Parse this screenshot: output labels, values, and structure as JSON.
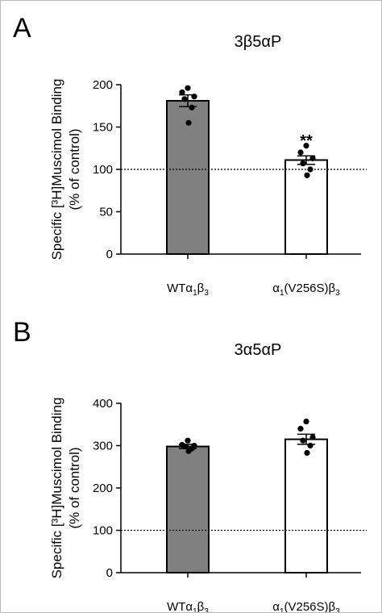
{
  "panels": [
    "A",
    "B"
  ],
  "chart_data": [
    {
      "type": "bar",
      "panel": "A",
      "title": "3β5αP",
      "ylabel": "Specific [³H]Muscimol Binding",
      "ylabel2": "(% of control)",
      "xlabel": "",
      "ylim": [
        0,
        200
      ],
      "yticks": [
        0,
        50,
        100,
        150,
        200
      ],
      "reference_line": 100,
      "categories": [
        {
          "base": "WTα",
          "sub1": "1",
          "mid": "β",
          "sub2": "3"
        },
        {
          "base": "α",
          "sub1": "1",
          "mid": "(V256S)β",
          "sub2": "3"
        }
      ],
      "values": [
        181,
        111
      ],
      "errors": [
        7,
        5
      ],
      "bar_colors": [
        "#808080",
        "#ffffff"
      ],
      "points": [
        [
          196,
          191,
          186,
          183,
          173,
          155
        ],
        [
          128,
          120,
          113,
          107,
          100,
          93
        ]
      ],
      "annotations": [
        "",
        "**"
      ]
    },
    {
      "type": "bar",
      "panel": "B",
      "title": "3α5αP",
      "ylabel": "Specific [³H]Muscimol Binding",
      "ylabel2": "(% of control)",
      "xlabel": "",
      "ylim": [
        0,
        400
      ],
      "yticks": [
        0,
        100,
        200,
        300,
        400
      ],
      "reference_line": 100,
      "categories": [
        {
          "base": "WTα",
          "sub1": "1",
          "mid": "β",
          "sub2": "3"
        },
        {
          "base": "α",
          "sub1": "1",
          "mid": "(V256S)β",
          "sub2": "3"
        }
      ],
      "values": [
        298,
        315
      ],
      "errors": [
        5,
        12
      ],
      "bar_colors": [
        "#808080",
        "#ffffff"
      ],
      "points": [
        [
          312,
          302,
          300,
          298,
          293,
          287
        ],
        [
          357,
          340,
          320,
          312,
          300,
          283
        ]
      ],
      "annotations": [
        "",
        ""
      ]
    }
  ]
}
